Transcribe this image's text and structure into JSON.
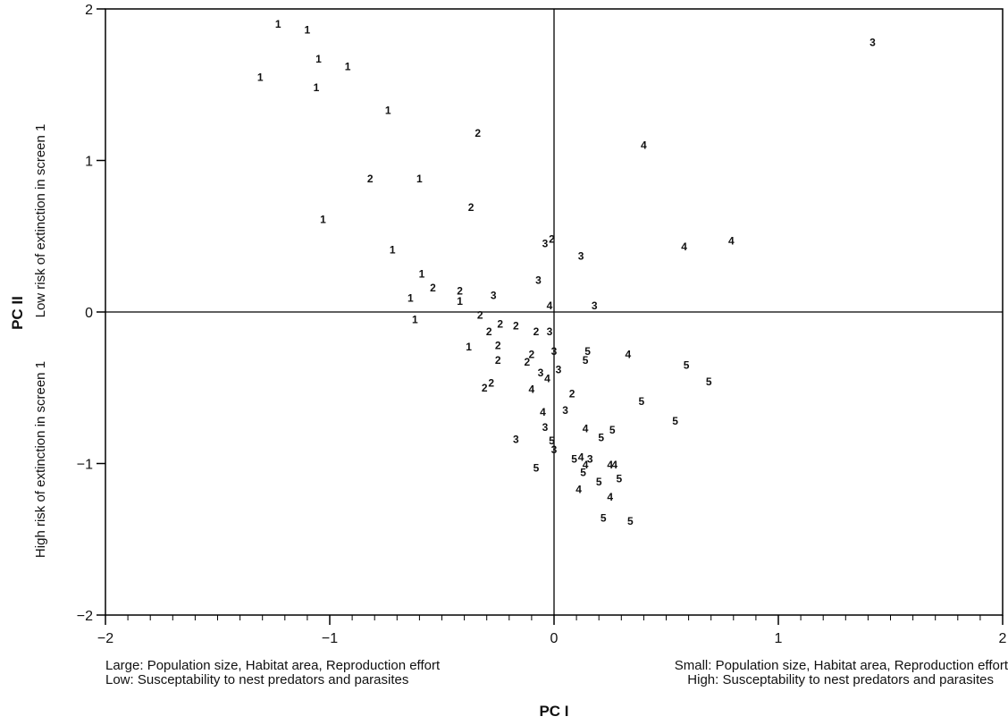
{
  "chart_data": {
    "type": "scatter",
    "title": "",
    "xlabel": "PC I",
    "ylabel": "PC II",
    "xlim": [
      -2,
      2
    ],
    "ylim": [
      -2,
      2
    ],
    "xticks": [
      -2,
      -1,
      0,
      1,
      2
    ],
    "yticks": [
      -2,
      -1,
      0,
      1,
      2
    ],
    "grid": false,
    "reference_lines": {
      "x": 0,
      "y": 0
    },
    "x_captions": {
      "left": [
        "Large: Population size, Habitat area, Reproduction effort",
        "Low: Susceptability to nest predators and parasites"
      ],
      "right": [
        "Small: Population size, Habitat area, Reproduction effort",
        "High: Susceptability to nest predators and parasites"
      ]
    },
    "y_captions": {
      "top": "Low risk of extinction in screen 1",
      "bottom": "High risk of extinction in screen 1"
    },
    "marker_labels": [
      "1",
      "2",
      "3",
      "4",
      "5"
    ],
    "points": [
      {
        "x": -1.23,
        "y": 1.9,
        "label": "1"
      },
      {
        "x": -1.1,
        "y": 1.86,
        "label": "1"
      },
      {
        "x": -1.05,
        "y": 1.67,
        "label": "1"
      },
      {
        "x": -0.92,
        "y": 1.62,
        "label": "1"
      },
      {
        "x": -1.31,
        "y": 1.55,
        "label": "1"
      },
      {
        "x": -1.06,
        "y": 1.48,
        "label": "1"
      },
      {
        "x": -0.74,
        "y": 1.33,
        "label": "1"
      },
      {
        "x": -0.6,
        "y": 0.88,
        "label": "1"
      },
      {
        "x": -1.03,
        "y": 0.61,
        "label": "1"
      },
      {
        "x": -0.72,
        "y": 0.41,
        "label": "1"
      },
      {
        "x": -0.59,
        "y": 0.25,
        "label": "1"
      },
      {
        "x": -0.64,
        "y": 0.09,
        "label": "1"
      },
      {
        "x": -0.42,
        "y": 0.07,
        "label": "1"
      },
      {
        "x": -0.62,
        "y": -0.05,
        "label": "1"
      },
      {
        "x": -0.38,
        "y": -0.23,
        "label": "1"
      },
      {
        "x": -0.34,
        "y": 1.18,
        "label": "2"
      },
      {
        "x": -0.82,
        "y": 0.88,
        "label": "2"
      },
      {
        "x": -0.37,
        "y": 0.69,
        "label": "2"
      },
      {
        "x": -0.54,
        "y": 0.16,
        "label": "2"
      },
      {
        "x": -0.42,
        "y": 0.14,
        "label": "2"
      },
      {
        "x": -0.33,
        "y": -0.02,
        "label": "2"
      },
      {
        "x": -0.29,
        "y": -0.13,
        "label": "2"
      },
      {
        "x": -0.24,
        "y": -0.08,
        "label": "2"
      },
      {
        "x": -0.17,
        "y": -0.09,
        "label": "2"
      },
      {
        "x": -0.08,
        "y": -0.13,
        "label": "2"
      },
      {
        "x": -0.25,
        "y": -0.22,
        "label": "2"
      },
      {
        "x": -0.25,
        "y": -0.32,
        "label": "2"
      },
      {
        "x": -0.1,
        "y": -0.28,
        "label": "2"
      },
      {
        "x": -0.12,
        "y": -0.33,
        "label": "2"
      },
      {
        "x": -0.28,
        "y": -0.47,
        "label": "2"
      },
      {
        "x": -0.31,
        "y": -0.5,
        "label": "2"
      },
      {
        "x": -0.01,
        "y": 0.48,
        "label": "2"
      },
      {
        "x": 0.08,
        "y": -0.54,
        "label": "2"
      },
      {
        "x": 1.42,
        "y": 1.78,
        "label": "3"
      },
      {
        "x": -0.04,
        "y": 0.45,
        "label": "3"
      },
      {
        "x": 0.12,
        "y": 0.37,
        "label": "3"
      },
      {
        "x": -0.07,
        "y": 0.21,
        "label": "3"
      },
      {
        "x": -0.27,
        "y": 0.11,
        "label": "3"
      },
      {
        "x": 0.18,
        "y": 0.04,
        "label": "3"
      },
      {
        "x": -0.02,
        "y": -0.13,
        "label": "3"
      },
      {
        "x": 0.0,
        "y": -0.26,
        "label": "3"
      },
      {
        "x": 0.02,
        "y": -0.38,
        "label": "3"
      },
      {
        "x": -0.06,
        "y": -0.4,
        "label": "3"
      },
      {
        "x": 0.05,
        "y": -0.65,
        "label": "3"
      },
      {
        "x": -0.04,
        "y": -0.76,
        "label": "3"
      },
      {
        "x": -0.17,
        "y": -0.84,
        "label": "3"
      },
      {
        "x": 0.0,
        "y": -0.91,
        "label": "3"
      },
      {
        "x": 0.16,
        "y": -0.97,
        "label": "3"
      },
      {
        "x": 0.4,
        "y": 1.1,
        "label": "4"
      },
      {
        "x": 0.58,
        "y": 0.43,
        "label": "4"
      },
      {
        "x": 0.79,
        "y": 0.47,
        "label": "4"
      },
      {
        "x": -0.02,
        "y": 0.04,
        "label": "4"
      },
      {
        "x": 0.33,
        "y": -0.28,
        "label": "4"
      },
      {
        "x": -0.03,
        "y": -0.44,
        "label": "4"
      },
      {
        "x": -0.1,
        "y": -0.51,
        "label": "4"
      },
      {
        "x": -0.05,
        "y": -0.66,
        "label": "4"
      },
      {
        "x": 0.14,
        "y": -0.77,
        "label": "4"
      },
      {
        "x": 0.12,
        "y": -0.96,
        "label": "4"
      },
      {
        "x": 0.14,
        "y": -1.01,
        "label": "4"
      },
      {
        "x": 0.25,
        "y": -1.01,
        "label": "4"
      },
      {
        "x": 0.27,
        "y": -1.01,
        "label": "4"
      },
      {
        "x": 0.11,
        "y": -1.17,
        "label": "4"
      },
      {
        "x": 0.25,
        "y": -1.22,
        "label": "4"
      },
      {
        "x": 0.15,
        "y": -0.26,
        "label": "5"
      },
      {
        "x": 0.14,
        "y": -0.32,
        "label": "5"
      },
      {
        "x": 0.59,
        "y": -0.35,
        "label": "5"
      },
      {
        "x": 0.69,
        "y": -0.46,
        "label": "5"
      },
      {
        "x": 0.39,
        "y": -0.59,
        "label": "5"
      },
      {
        "x": 0.54,
        "y": -0.72,
        "label": "5"
      },
      {
        "x": 0.26,
        "y": -0.78,
        "label": "5"
      },
      {
        "x": 0.21,
        "y": -0.83,
        "label": "5"
      },
      {
        "x": -0.01,
        "y": -0.85,
        "label": "5"
      },
      {
        "x": 0.09,
        "y": -0.97,
        "label": "5"
      },
      {
        "x": -0.08,
        "y": -1.03,
        "label": "5"
      },
      {
        "x": 0.13,
        "y": -1.06,
        "label": "5"
      },
      {
        "x": 0.29,
        "y": -1.1,
        "label": "5"
      },
      {
        "x": 0.2,
        "y": -1.12,
        "label": "5"
      },
      {
        "x": 0.22,
        "y": -1.36,
        "label": "5"
      },
      {
        "x": 0.34,
        "y": -1.38,
        "label": "5"
      }
    ]
  }
}
